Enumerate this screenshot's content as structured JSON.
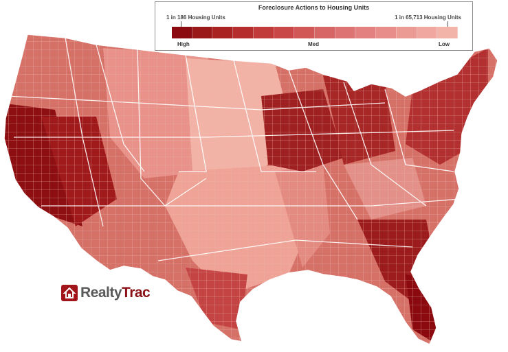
{
  "legend": {
    "title": "Foreclosure Actions to Housing Units",
    "range_high_label": "1 in 186 Housing Units",
    "range_low_label": "1 in 65,713 Housing Units",
    "levels": {
      "high": "High",
      "med": "Med",
      "low": "Low"
    },
    "ramp_colors": [
      "#8b0a0f",
      "#9b1818",
      "#a92323",
      "#b52d2d",
      "#c13b3b",
      "#c94747",
      "#d15656",
      "#d86565",
      "#de7373",
      "#e38080",
      "#e88d8a",
      "#ec9a94",
      "#efa79f",
      "#f2b3a9"
    ]
  },
  "map": {
    "subject": "Contiguous United States counties",
    "background": "#ffffff",
    "boundary_color": "#ffffff"
  },
  "logo": {
    "text_a": "Realty",
    "text_b": "Trac",
    "mark": "house-icon"
  }
}
